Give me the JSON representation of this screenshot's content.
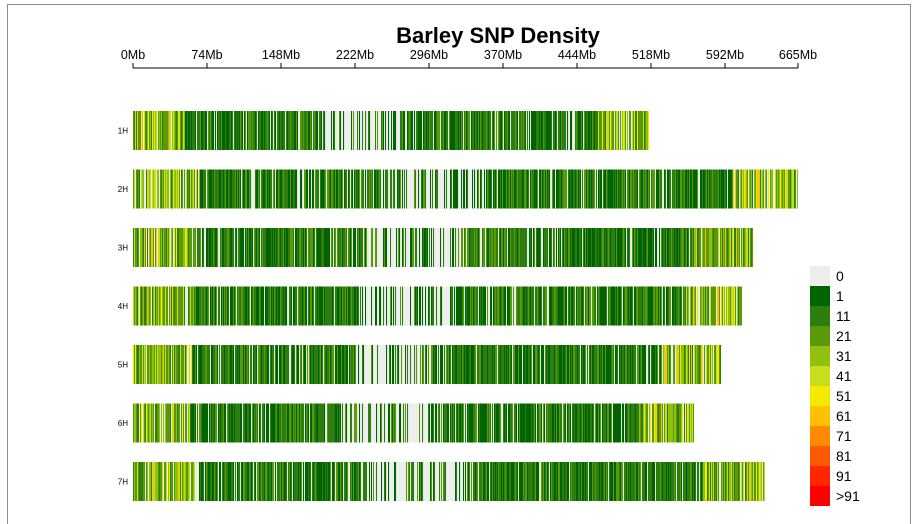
{
  "chart_data": {
    "type": "heatmap",
    "title": "Barley SNP Density",
    "x_ticks": [
      "0Mb",
      "74Mb",
      "148Mb",
      "222Mb",
      "296Mb",
      "370Mb",
      "444Mb",
      "518Mb",
      "592Mb",
      "665Mb"
    ],
    "xlim_mb": [
      0,
      665
    ],
    "chromosomes": [
      {
        "name": "1H",
        "length_mb": 516
      },
      {
        "name": "2H",
        "length_mb": 665
      },
      {
        "name": "3H",
        "length_mb": 620
      },
      {
        "name": "4H",
        "length_mb": 609
      },
      {
        "name": "5H",
        "length_mb": 588
      },
      {
        "name": "6H",
        "length_mb": 561
      },
      {
        "name": "7H",
        "length_mb": 632
      }
    ],
    "legend": {
      "labels": [
        "0",
        "1",
        "11",
        "21",
        "31",
        "41",
        "51",
        "61",
        "71",
        "81",
        "91",
        ">91"
      ],
      "colors": [
        "#eeeeee",
        "#006400",
        "#2e7d0f",
        "#5a9a0a",
        "#90c10c",
        "#c8de1c",
        "#f4ea00",
        "#ffc000",
        "#ff8c00",
        "#ff5a00",
        "#ff2600",
        "#ff0000"
      ]
    },
    "grid": false
  }
}
